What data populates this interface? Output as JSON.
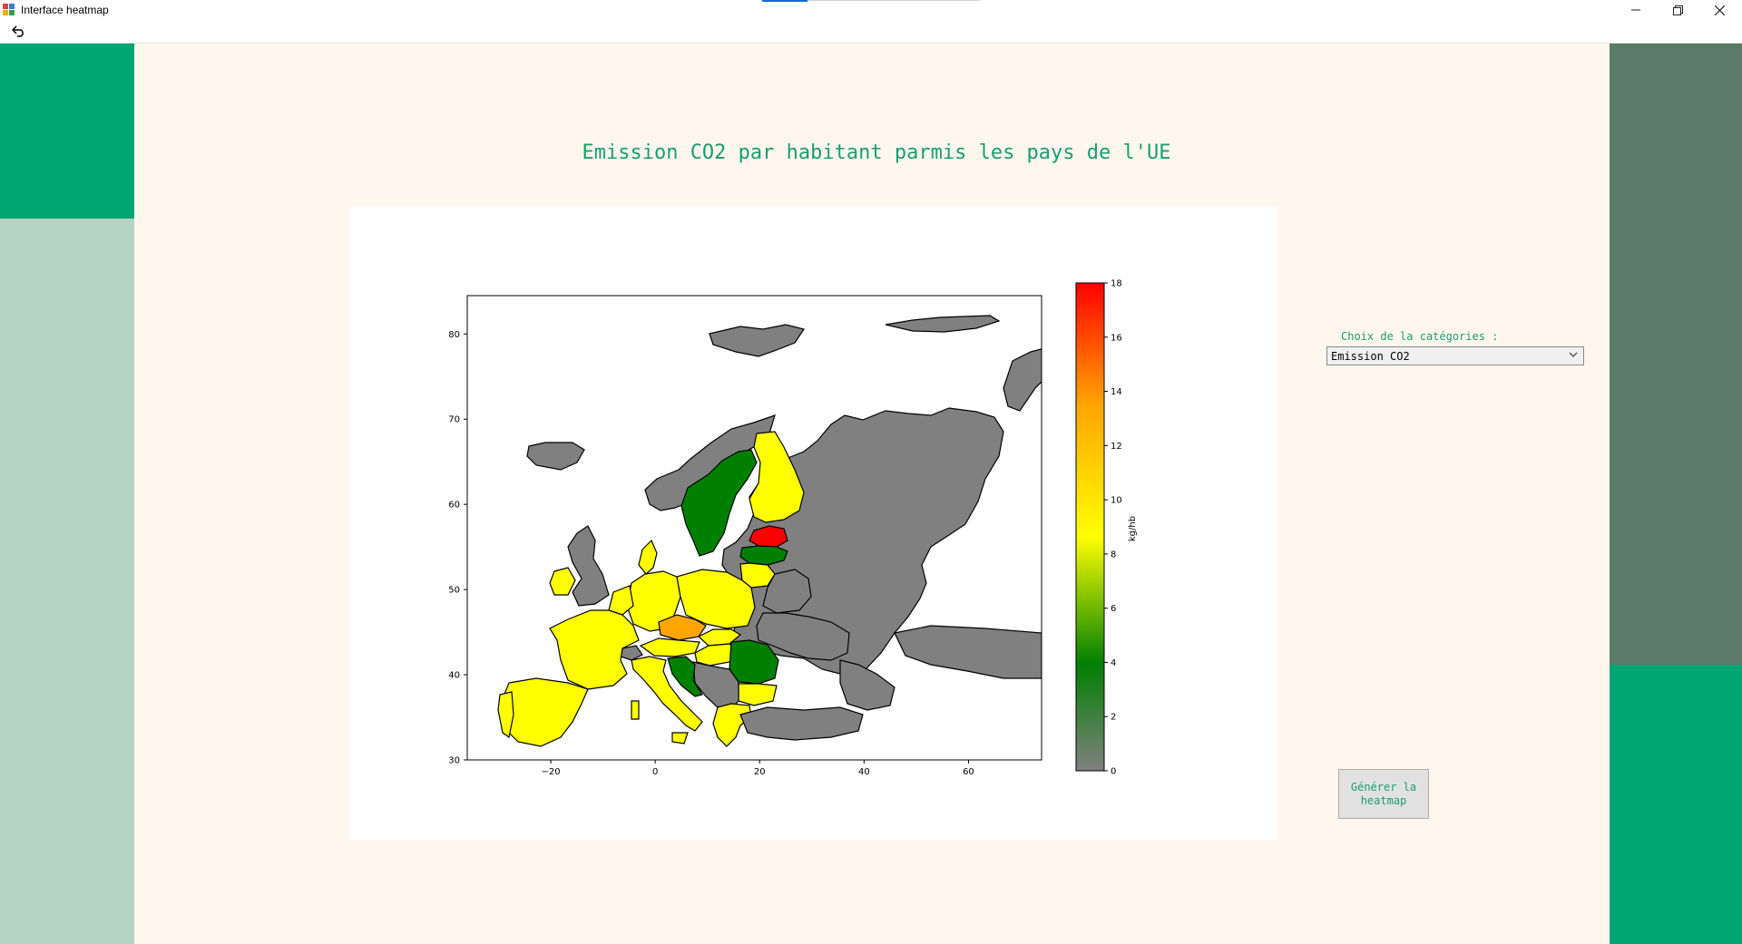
{
  "window": {
    "title": "Interface heatmap"
  },
  "page": {
    "title": "Emission CO2 par habitant parmis les pays de l'UE"
  },
  "controls": {
    "category_label": "Choix de la catégories :",
    "category_value": "Emission CO2",
    "generate_button": "Générer la heatmap"
  },
  "colors": {
    "accent_green": "#00a672",
    "pale_green": "#b5d4c3",
    "slate_green": "#5b7a68",
    "background": "#fff7ee",
    "title_text": "#1a9e6e"
  },
  "chart_data": {
    "type": "heatmap",
    "title": "",
    "xlabel": "",
    "ylabel": "",
    "xlim": [
      -36,
      74
    ],
    "ylim": [
      30,
      84.5
    ],
    "x_ticks": [
      "-20",
      "0",
      "20",
      "40",
      "60"
    ],
    "y_ticks": [
      "30",
      "40",
      "50",
      "60",
      "70",
      "80"
    ],
    "colorbar": {
      "label": "kg/hb",
      "range": [
        0,
        18
      ],
      "ticks": [
        "0",
        "2",
        "4",
        "6",
        "8",
        "10",
        "12",
        "14",
        "16",
        "18"
      ],
      "colors": [
        "#808080",
        "#008000",
        "#ffff00",
        "#ffa500",
        "#ff0000"
      ]
    },
    "grid": false
  }
}
